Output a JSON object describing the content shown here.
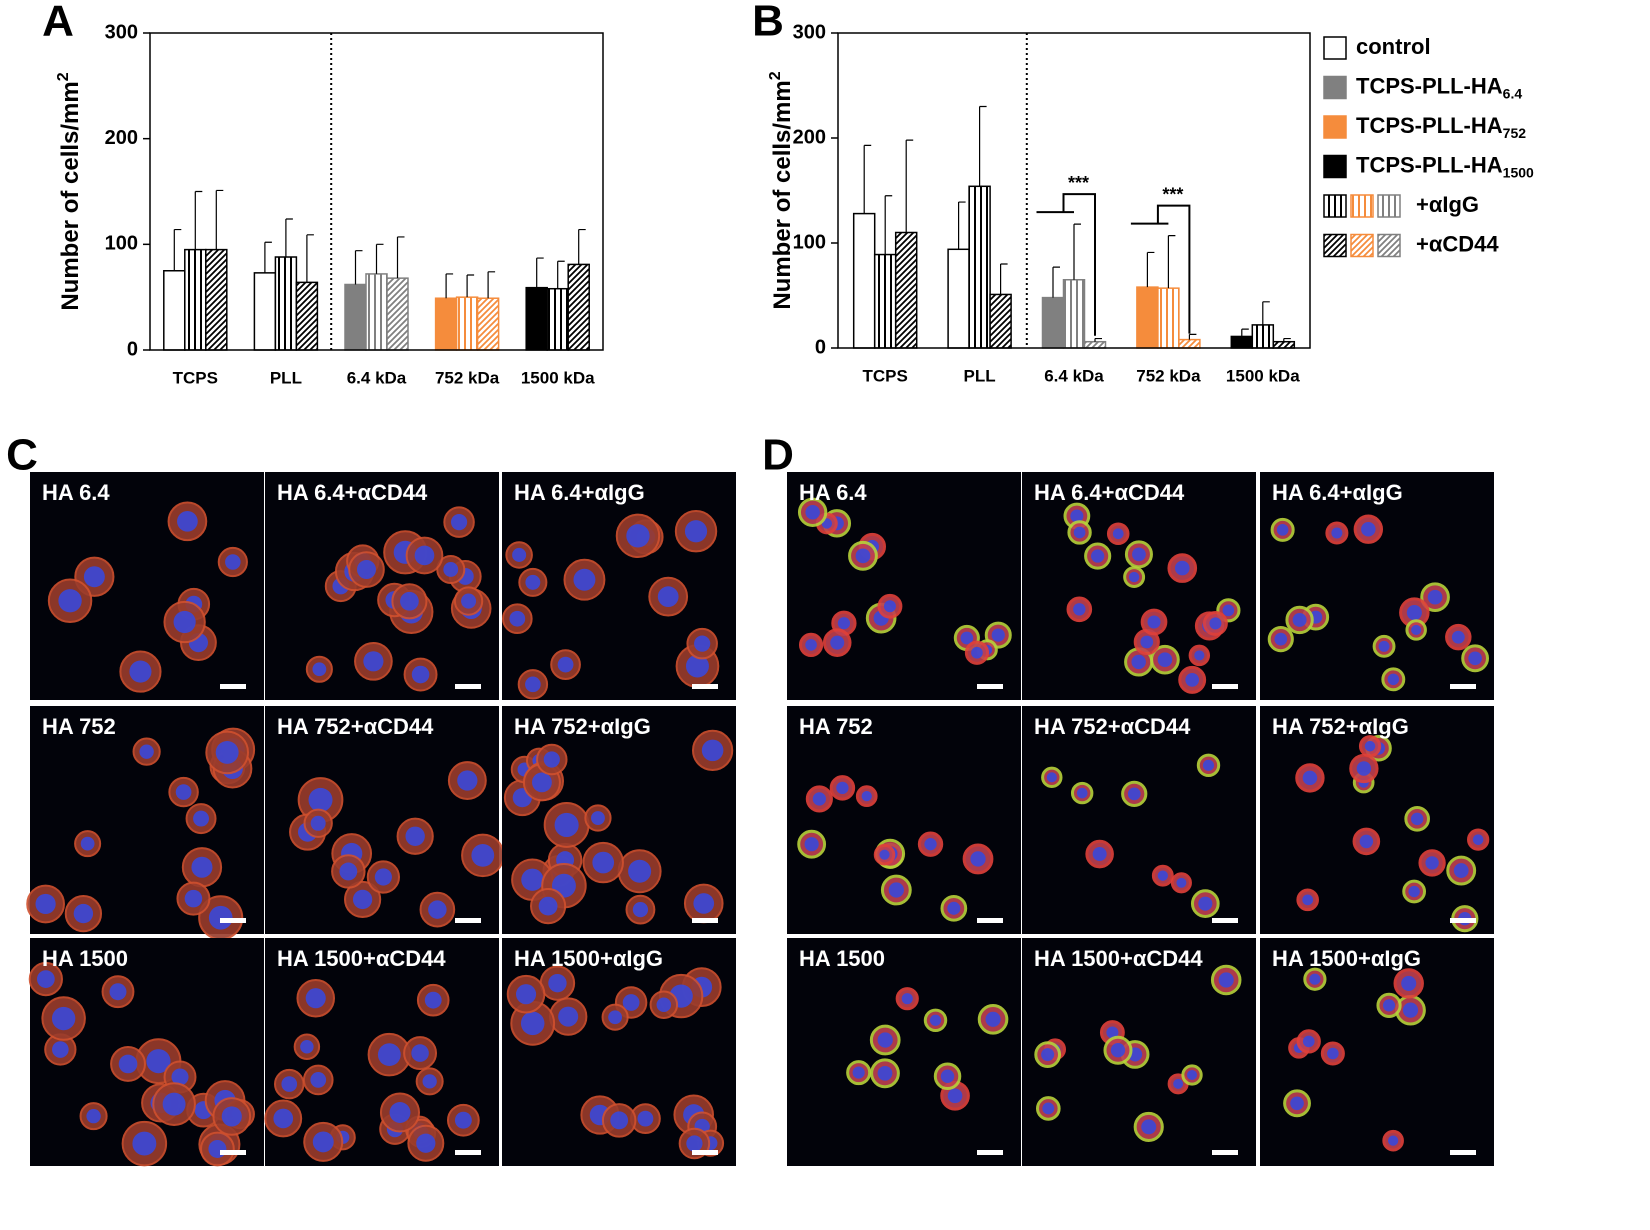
{
  "chart_data": [
    {
      "type": "bar",
      "panel_label": "A",
      "ylabel": "Number of cells/mm",
      "ylabel_sup": "2",
      "categories": [
        "TCPS",
        "PLL",
        "6.4 kDa",
        "752 kDa",
        "1500 kDa"
      ],
      "group_colors": [
        "#ffffff",
        "#ffffff",
        "#808080",
        "#f58c3c",
        "#000000"
      ],
      "series": [
        {
          "pattern": "solid",
          "values": [
            75,
            73,
            62,
            49,
            59
          ],
          "errors": [
            39,
            29,
            32,
            23,
            28
          ]
        },
        {
          "pattern": "vertical",
          "values": [
            95,
            88,
            72,
            50,
            58
          ],
          "errors": [
            55,
            36,
            28,
            21,
            26
          ]
        },
        {
          "pattern": "diagonal",
          "values": [
            95,
            64,
            68,
            49,
            81
          ],
          "errors": [
            56,
            45,
            39,
            25,
            33
          ]
        }
      ],
      "ylim": [
        0,
        300
      ],
      "yticks": [
        0,
        100,
        200,
        300
      ]
    },
    {
      "type": "bar",
      "panel_label": "B",
      "ylabel": "Number of cells/mm",
      "ylabel_sup": "2",
      "categories": [
        "TCPS",
        "PLL",
        "6.4 kDa",
        "752 kDa",
        "1500 kDa"
      ],
      "group_colors": [
        "#ffffff",
        "#ffffff",
        "#808080",
        "#f58c3c",
        "#000000"
      ],
      "series": [
        {
          "pattern": "solid",
          "values": [
            128,
            94,
            48,
            58,
            11
          ],
          "errors": [
            65,
            45,
            29,
            33,
            7
          ]
        },
        {
          "pattern": "vertical",
          "values": [
            89,
            154,
            65,
            57,
            22
          ],
          "errors": [
            56,
            76,
            53,
            50,
            22
          ]
        },
        {
          "pattern": "diagonal",
          "values": [
            110,
            51,
            6,
            8,
            6
          ],
          "errors": [
            88,
            29,
            3,
            5,
            3
          ]
        }
      ],
      "ylim": [
        0,
        300
      ],
      "yticks": [
        0,
        100,
        200,
        300
      ],
      "annotations": [
        {
          "text": "***",
          "category": "6.4 kDa"
        },
        {
          "text": "***",
          "category": "752 kDa"
        }
      ],
      "legend": [
        {
          "text": "control",
          "pattern": "solid",
          "swatches": [
            "#ffffff"
          ]
        },
        {
          "text": "TCPS-PLL-HA",
          "sub": "6.4",
          "pattern": "solid",
          "swatches": [
            "#808080"
          ]
        },
        {
          "text": "TCPS-PLL-HA",
          "sub": "752",
          "pattern": "solid",
          "swatches": [
            "#f58c3c"
          ]
        },
        {
          "text": "TCPS-PLL-HA",
          "sub": "1500",
          "pattern": "solid",
          "swatches": [
            "#000000"
          ]
        },
        {
          "text": "+αIgG",
          "pattern": "vertical",
          "swatches": [
            "#000000",
            "#f58c3c",
            "#808080"
          ]
        },
        {
          "text": "+αCD44",
          "pattern": "diagonal",
          "swatches": [
            "#000000",
            "#f58c3c",
            "#808080"
          ]
        }
      ]
    }
  ],
  "panels": [
    {
      "letter": "C",
      "labels": [
        [
          "HA 6.4",
          "HA 6.4+αCD44",
          "HA 6.4+αIgG"
        ],
        [
          "HA 752",
          "HA 752+αCD44",
          "HA 752+αIgG"
        ],
        [
          "HA 1500",
          "HA 1500+αCD44",
          "HA 1500+αIgG"
        ]
      ]
    },
    {
      "letter": "D",
      "labels": [
        [
          "HA 6.4",
          "HA 6.4+αCD44",
          "HA 6.4+αIgG"
        ],
        [
          "HA 752",
          "HA 752+αCD44",
          "HA 752+αIgG"
        ],
        [
          "HA 1500",
          "HA 1500+αCD44",
          "HA 1500+αIgG"
        ]
      ]
    }
  ]
}
